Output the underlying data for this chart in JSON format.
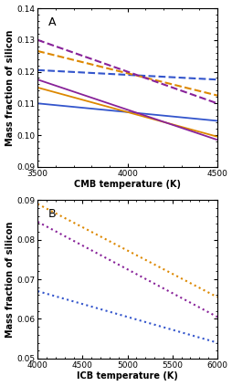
{
  "panel_A": {
    "label": "A",
    "xlabel": "CMB temperature (K)",
    "ylabel": "Mass fraction of silicon",
    "xlim": [
      3500,
      4500
    ],
    "ylim": [
      0.09,
      0.14
    ],
    "yticks": [
      0.09,
      0.1,
      0.11,
      0.12,
      0.13,
      0.14
    ],
    "xticks": [
      3500,
      4000,
      4500
    ],
    "lines": [
      {
        "x": [
          3500,
          4500
        ],
        "y": [
          0.1205,
          0.1175
        ],
        "color": "#3355cc",
        "linestyle": "--",
        "lw": 1.5
      },
      {
        "x": [
          3500,
          4500
        ],
        "y": [
          0.1265,
          0.1125
        ],
        "color": "#dd8800",
        "linestyle": "--",
        "lw": 1.5
      },
      {
        "x": [
          3500,
          4500
        ],
        "y": [
          0.13,
          0.11
        ],
        "color": "#882299",
        "linestyle": "--",
        "lw": 1.5
      },
      {
        "x": [
          3500,
          4500
        ],
        "y": [
          0.11,
          0.1045
        ],
        "color": "#3355cc",
        "linestyle": "-",
        "lw": 1.3
      },
      {
        "x": [
          3500,
          4500
        ],
        "y": [
          0.115,
          0.0995
        ],
        "color": "#dd8800",
        "linestyle": "-",
        "lw": 1.3
      },
      {
        "x": [
          3500,
          4500
        ],
        "y": [
          0.1175,
          0.0985
        ],
        "color": "#882299",
        "linestyle": "-",
        "lw": 1.3
      }
    ]
  },
  "panel_B": {
    "label": "B",
    "xlabel": "ICB temperature (K)",
    "ylabel": "Mass fraction of silicon",
    "xlim": [
      4000,
      6000
    ],
    "ylim": [
      0.05,
      0.09
    ],
    "yticks": [
      0.05,
      0.06,
      0.07,
      0.08,
      0.09
    ],
    "xticks": [
      4000,
      4500,
      5000,
      5500,
      6000
    ],
    "lines": [
      {
        "x": [
          4000,
          6000
        ],
        "y": [
          0.067,
          0.054
        ],
        "color": "#3355cc",
        "linestyle": ":",
        "lw": 1.5
      },
      {
        "x": [
          4000,
          6000
        ],
        "y": [
          0.0845,
          0.0605
        ],
        "color": "#882299",
        "linestyle": ":",
        "lw": 1.5
      },
      {
        "x": [
          4000,
          6000
        ],
        "y": [
          0.089,
          0.0655
        ],
        "color": "#dd8800",
        "linestyle": ":",
        "lw": 1.5
      }
    ]
  },
  "label_fontsize": 7,
  "tick_fontsize": 6.5,
  "panel_label_fontsize": 9
}
